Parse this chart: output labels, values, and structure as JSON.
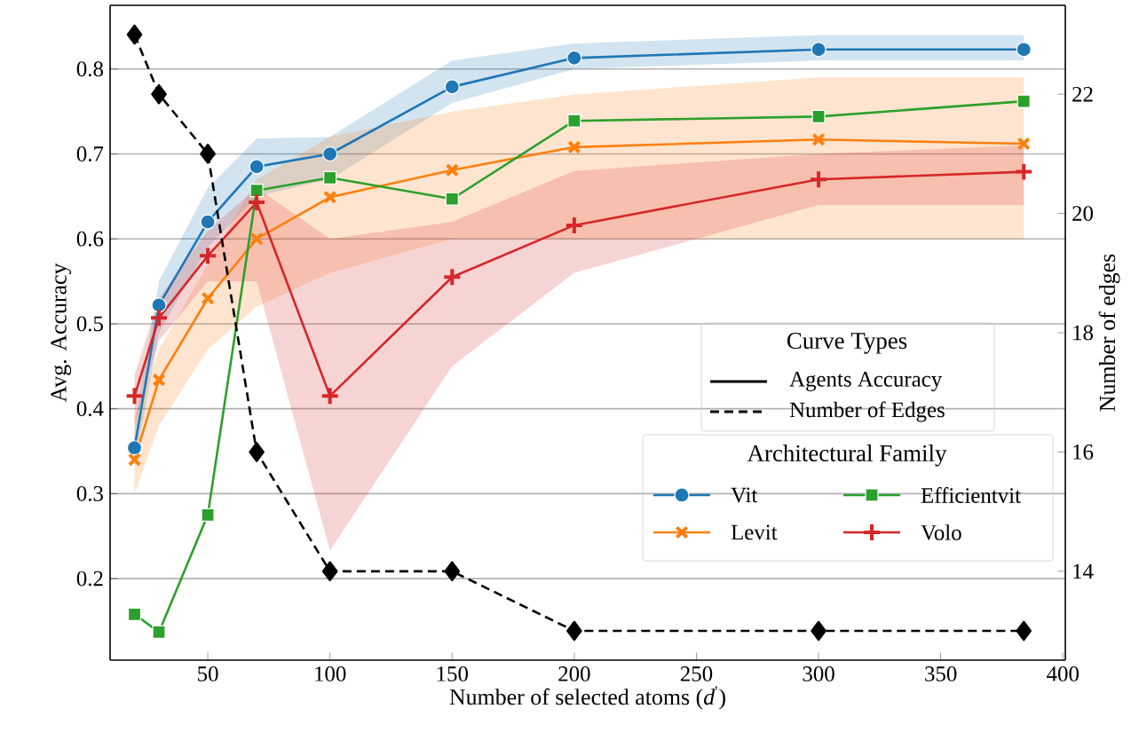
{
  "chart_data": {
    "type": "line",
    "xlabel": "Number of selected atoms (*d*$^{'}$)",
    "ylabel": "Avg. Accuracy",
    "y2label": "Number of edges",
    "legend_title": "Architectural Family",
    "annotations": [
      "Curve Types",
      "Agents Accuracy"
    ],
    "x": [
      20,
      30,
      50,
      70,
      100,
      150,
      200,
      300,
      384
    ],
    "xlim": [
      10,
      401
    ],
    "xticks": [
      50,
      100,
      150,
      200,
      250,
      300,
      350,
      400
    ],
    "ylim": [
      0.104,
      0.875
    ],
    "yticks": [
      0.2,
      0.3,
      0.4,
      0.5,
      0.6,
      0.7,
      0.8
    ],
    "y2lim": [
      12.51,
      23.49
    ],
    "y2ticks": [
      14,
      16,
      18,
      20,
      22
    ],
    "grid": "y",
    "legend": "right",
    "series": [
      {
        "name": "Vit",
        "color": "#1f77b4",
        "marker": "circle",
        "line_style": "solid",
        "values": [
          0.354,
          0.522,
          0.62,
          0.685,
          0.7,
          0.779,
          0.813,
          0.823,
          0.823
        ],
        "lower": [
          0.33,
          0.49,
          0.59,
          0.65,
          0.67,
          0.76,
          0.8,
          0.81,
          0.81
        ],
        "upper": [
          0.38,
          0.55,
          0.66,
          0.718,
          0.72,
          0.81,
          0.83,
          0.84,
          0.84
        ]
      },
      {
        "name": "Levit",
        "color": "#ff7f0e",
        "marker": "cross",
        "line_style": "solid",
        "values": [
          0.34,
          0.434,
          0.53,
          0.6,
          0.649,
          0.681,
          0.708,
          0.717,
          0.712
        ],
        "lower": [
          0.3,
          0.38,
          0.47,
          0.52,
          0.56,
          0.6,
          0.6,
          0.6,
          0.6
        ],
        "upper": [
          0.39,
          0.47,
          0.57,
          0.67,
          0.72,
          0.75,
          0.77,
          0.79,
          0.79
        ]
      },
      {
        "name": "Efficientvit",
        "color": "#2ca02c",
        "marker": "square",
        "line_style": "solid",
        "values": [
          0.158,
          0.137,
          0.275,
          0.657,
          0.672,
          0.647,
          0.739,
          0.744,
          0.762
        ]
      },
      {
        "name": "Volo",
        "color": "#d62728",
        "marker": "plus",
        "line_style": "solid",
        "values": [
          0.415,
          0.507,
          0.58,
          0.643,
          0.415,
          0.555,
          0.616,
          0.67,
          0.679
        ],
        "lower": [
          0.38,
          0.48,
          0.55,
          0.55,
          0.233,
          0.45,
          0.56,
          0.64,
          0.64
        ],
        "upper": [
          0.44,
          0.53,
          0.61,
          0.66,
          0.6,
          0.62,
          0.68,
          0.7,
          0.71
        ]
      },
      {
        "name": "Number of Edges",
        "color": "#000000",
        "marker": "diamond",
        "line_style": "dashed",
        "axis": "y2",
        "values": [
          23,
          22,
          21,
          16,
          14,
          14,
          13,
          13,
          13
        ]
      }
    ]
  }
}
